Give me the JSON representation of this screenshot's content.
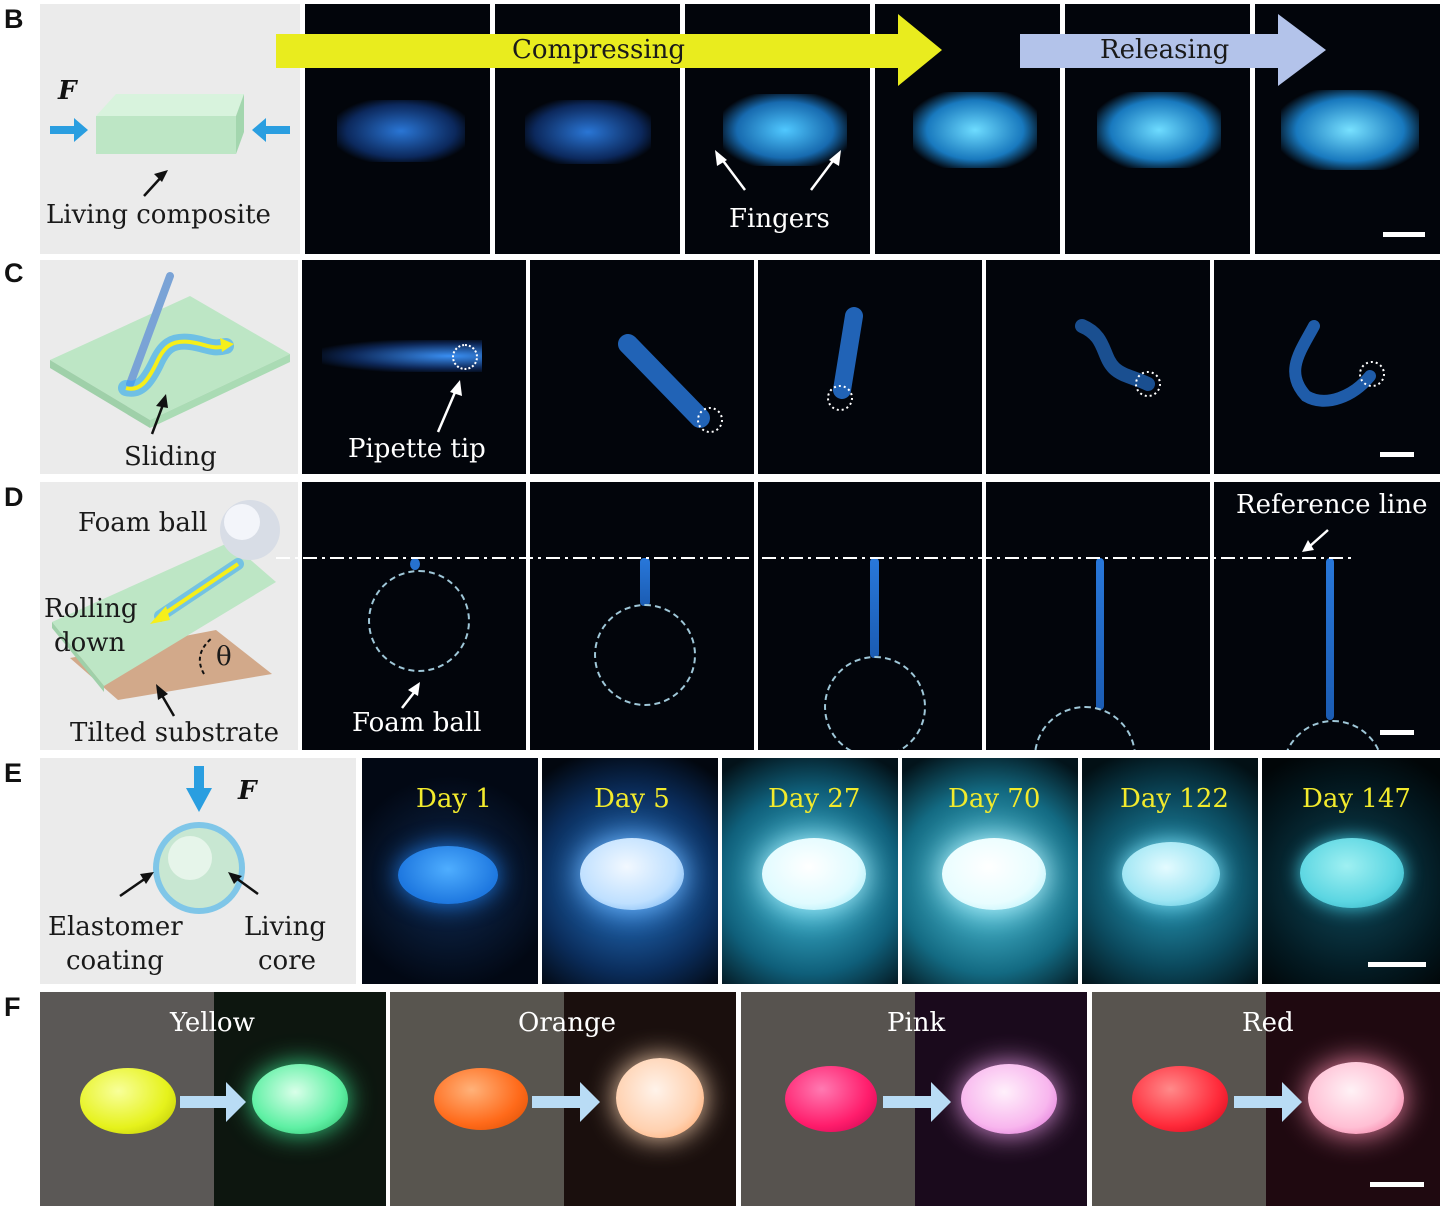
{
  "panel_labels": [
    "B",
    "C",
    "D",
    "E",
    "F"
  ],
  "B": {
    "arrow_compressing": "Compressing",
    "arrow_releasing": "Releasing",
    "force_symbol": "F",
    "schematic_label": "Living composite",
    "fingers_label": "Fingers",
    "frames_count": 6
  },
  "C": {
    "schematic_label": "Sliding",
    "pipette_label": "Pipette tip",
    "frames_count": 5
  },
  "D": {
    "foam_ball_label": "Foam ball",
    "rolling_label_line1": "Rolling",
    "rolling_label_line2": "down",
    "theta": "θ",
    "substrate_label": "Tilted substrate",
    "frame_foam_label": "Foam ball",
    "reference_label": "Reference line",
    "frames_count": 5
  },
  "E": {
    "force_symbol": "F",
    "coating_line1": "Elastomer",
    "coating_line2": "coating",
    "core_line1": "Living",
    "core_line2": "core",
    "days": [
      "Day 1",
      "Day 5",
      "Day 27",
      "Day 70",
      "Day 122",
      "Day 147"
    ]
  },
  "F": {
    "colors": [
      "Yellow",
      "Orange",
      "Pink",
      "Red"
    ]
  },
  "colors": {
    "glow_blue": "#2f8cff",
    "arrow_yellow": "#e9ec1e",
    "arrow_periwinkle": "#b3c3ea",
    "schematic_green": "#bfe8c8",
    "day_text": "#f2ea2c"
  }
}
